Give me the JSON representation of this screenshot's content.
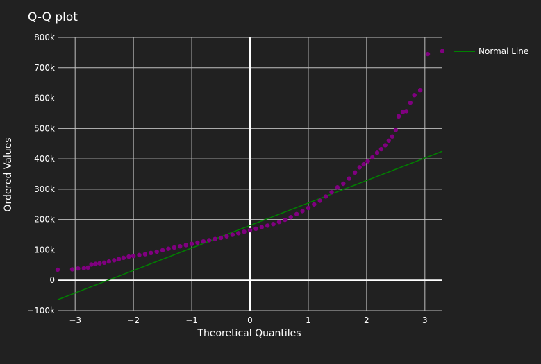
{
  "chart_data": {
    "type": "scatter",
    "title": "Q-Q plot",
    "xlabel": "Theoretical Quantiles",
    "ylabel": "Ordered Values",
    "xlim": [
      -3.3,
      3.3
    ],
    "ylim": [
      -100000,
      800000
    ],
    "x_ticks": [
      -3,
      -2,
      -1,
      0,
      1,
      2,
      3
    ],
    "x_tick_labels": [
      "−3",
      "−2",
      "−1",
      "0",
      "1",
      "2",
      "3"
    ],
    "y_ticks": [
      -100000,
      0,
      100000,
      200000,
      300000,
      400000,
      500000,
      600000,
      700000,
      800000
    ],
    "y_tick_labels": [
      "−100k",
      "0",
      "100k",
      "200k",
      "300k",
      "400k",
      "500k",
      "600k",
      "700k",
      "800k"
    ],
    "grid": true,
    "legend_position": "top-right",
    "colors": {
      "background": "#212121",
      "points": "#800080",
      "line": "#008000",
      "grid": "#bfbfbf",
      "zero": "#ffffff"
    },
    "series": [
      {
        "type": "scatter",
        "points": [
          [
            -3.3,
            35000
          ],
          [
            -3.05,
            36000
          ],
          [
            -2.95,
            39000
          ],
          [
            -2.85,
            40000
          ],
          [
            -2.78,
            42000
          ],
          [
            -2.72,
            52000
          ],
          [
            -2.65,
            54000
          ],
          [
            -2.58,
            56000
          ],
          [
            -2.5,
            58000
          ],
          [
            -2.42,
            62000
          ],
          [
            -2.33,
            66000
          ],
          [
            -2.25,
            70000
          ],
          [
            -2.17,
            74000
          ],
          [
            -2.08,
            78000
          ],
          [
            -2.0,
            80000
          ],
          [
            -1.9,
            83000
          ],
          [
            -1.8,
            86000
          ],
          [
            -1.7,
            90000
          ],
          [
            -1.6,
            94000
          ],
          [
            -1.5,
            99000
          ],
          [
            -1.4,
            104000
          ],
          [
            -1.3,
            108000
          ],
          [
            -1.2,
            112000
          ],
          [
            -1.1,
            116000
          ],
          [
            -1.0,
            120000
          ],
          [
            -0.9,
            124000
          ],
          [
            -0.8,
            128000
          ],
          [
            -0.7,
            132000
          ],
          [
            -0.6,
            136000
          ],
          [
            -0.5,
            140000
          ],
          [
            -0.4,
            145000
          ],
          [
            -0.3,
            150000
          ],
          [
            -0.2,
            155000
          ],
          [
            -0.1,
            160000
          ],
          [
            0.0,
            165000
          ],
          [
            0.1,
            170000
          ],
          [
            0.2,
            175000
          ],
          [
            0.3,
            180000
          ],
          [
            0.4,
            185000
          ],
          [
            0.5,
            192000
          ],
          [
            0.6,
            199000
          ],
          [
            0.7,
            208000
          ],
          [
            0.8,
            218000
          ],
          [
            0.9,
            228000
          ],
          [
            1.0,
            238000
          ],
          [
            1.1,
            250000
          ],
          [
            1.2,
            262000
          ],
          [
            1.3,
            276000
          ],
          [
            1.4,
            290000
          ],
          [
            1.5,
            306000
          ],
          [
            1.6,
            318000
          ],
          [
            1.7,
            335000
          ],
          [
            1.8,
            355000
          ],
          [
            1.88,
            372000
          ],
          [
            1.95,
            382000
          ],
          [
            2.02,
            392000
          ],
          [
            2.1,
            405000
          ],
          [
            2.18,
            420000
          ],
          [
            2.25,
            432000
          ],
          [
            2.32,
            445000
          ],
          [
            2.38,
            460000
          ],
          [
            2.44,
            474000
          ],
          [
            2.5,
            495000
          ],
          [
            2.55,
            540000
          ],
          [
            2.62,
            554000
          ],
          [
            2.68,
            557000
          ],
          [
            2.75,
            585000
          ],
          [
            2.82,
            610000
          ],
          [
            2.92,
            626000
          ],
          [
            3.05,
            745000
          ],
          [
            3.3,
            755000
          ]
        ]
      },
      {
        "type": "line",
        "name": "Normal Line",
        "points": [
          [
            -3.3,
            -64000
          ],
          [
            3.3,
            425000
          ]
        ]
      }
    ]
  }
}
